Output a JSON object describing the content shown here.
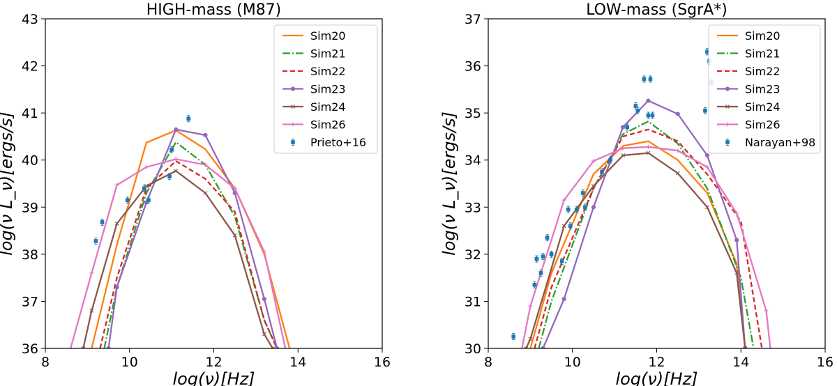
{
  "chart_data": [
    {
      "type": "line",
      "title": "HIGH-mass (M87)",
      "xlabel": "log(ν)[Hz]",
      "ylabel": "log(ν L_ν)[ergs/s]",
      "xlim": [
        8,
        16
      ],
      "ylim": [
        36,
        43
      ],
      "xticks": [
        8,
        10,
        12,
        14,
        16
      ],
      "yticks": [
        36,
        37,
        38,
        39,
        40,
        41,
        42,
        43
      ],
      "legend_position": "top-right",
      "series": [
        {
          "name": "Sim20",
          "color": "#ff7f0e",
          "style": "solid",
          "marker": "none",
          "x": [
            9.1,
            9.7,
            10.4,
            11.1,
            11.8,
            12.5,
            13.2,
            13.8
          ],
          "y": [
            36.0,
            38.2,
            40.37,
            40.63,
            40.23,
            39.4,
            38.0,
            36.0
          ]
        },
        {
          "name": "Sim21",
          "color": "#2ca02c",
          "style": "dashdot",
          "marker": "none",
          "x": [
            9.4,
            9.7,
            10.4,
            11.1,
            11.8,
            12.5,
            13.2,
            13.5
          ],
          "y": [
            36.0,
            37.3,
            39.3,
            40.38,
            39.9,
            38.8,
            36.6,
            36.0
          ]
        },
        {
          "name": "Sim22",
          "color": "#d62728",
          "style": "dashed",
          "marker": "none",
          "x": [
            9.3,
            9.7,
            10.4,
            11.1,
            11.8,
            12.5,
            13.2,
            13.5
          ],
          "y": [
            36.0,
            37.5,
            39.4,
            39.98,
            39.6,
            38.9,
            36.6,
            36.0
          ]
        },
        {
          "name": "Sim23",
          "color": "#9467bd",
          "style": "solid",
          "marker": "circle",
          "x": [
            9.5,
            9.7,
            10.4,
            11.1,
            11.8,
            12.5,
            13.2,
            13.5
          ],
          "y": [
            36.0,
            37.3,
            39.1,
            40.65,
            40.53,
            39.3,
            37.05,
            36.0
          ]
        },
        {
          "name": "Sim24",
          "color": "#8c564b",
          "style": "solid",
          "marker": "x",
          "x": [
            8.9,
            9.1,
            9.7,
            10.4,
            11.1,
            11.8,
            12.5,
            13.2,
            13.4
          ],
          "y": [
            36.0,
            36.8,
            38.65,
            39.45,
            39.77,
            39.3,
            38.4,
            36.3,
            36.0
          ]
        },
        {
          "name": "Sim26",
          "color": "#e377c2",
          "style": "solid",
          "marker": "plus",
          "x": [
            8.6,
            9.1,
            9.7,
            10.4,
            11.1,
            11.8,
            12.5,
            13.2,
            13.7
          ],
          "y": [
            36.0,
            37.6,
            39.47,
            39.85,
            40.02,
            39.9,
            39.4,
            38.05,
            36.0
          ]
        },
        {
          "name": "Prieto+16",
          "color": "#1f77b4",
          "style": "none",
          "marker": "square-errorbar",
          "x": [
            9.2,
            9.35,
            9.95,
            10.35,
            10.45,
            10.95,
            11.0,
            11.4
          ],
          "y": [
            38.28,
            38.68,
            39.15,
            39.4,
            39.15,
            39.65,
            40.22,
            40.88
          ]
        }
      ]
    },
    {
      "type": "line",
      "title": "LOW-mass (SgrA*)",
      "xlabel": "log(ν)[Hz]",
      "ylabel": "log(ν L_ν)[ergs/s]",
      "xlim": [
        8,
        16
      ],
      "ylim": [
        30,
        37
      ],
      "xticks": [
        8,
        10,
        12,
        14,
        16
      ],
      "yticks": [
        30,
        31,
        32,
        33,
        34,
        35,
        36,
        37
      ],
      "legend_position": "top-right",
      "series": [
        {
          "name": "Sim20",
          "color": "#ff7f0e",
          "style": "solid",
          "marker": "none",
          "x": [
            9.0,
            9.5,
            10.5,
            11.2,
            11.8,
            12.5,
            13.2,
            13.9,
            14.1
          ],
          "y": [
            30.0,
            31.6,
            33.7,
            34.3,
            34.4,
            34.0,
            33.3,
            31.8,
            30.0
          ]
        },
        {
          "name": "Sim21",
          "color": "#2ca02c",
          "style": "dashdot",
          "marker": "none",
          "x": [
            9.2,
            9.5,
            10.5,
            11.2,
            11.8,
            12.5,
            13.2,
            14.0,
            14.3
          ],
          "y": [
            30.0,
            31.0,
            33.4,
            34.55,
            34.82,
            34.35,
            33.4,
            31.5,
            30.0
          ]
        },
        {
          "name": "Sim22",
          "color": "#d62728",
          "style": "dashed",
          "marker": "none",
          "x": [
            9.1,
            9.5,
            10.5,
            11.2,
            11.8,
            12.5,
            13.2,
            14.0,
            14.5
          ],
          "y": [
            30.0,
            31.3,
            33.4,
            34.5,
            34.65,
            34.4,
            33.7,
            32.7,
            30.0
          ]
        },
        {
          "name": "Sim23",
          "color": "#9467bd",
          "style": "solid",
          "marker": "circle",
          "x": [
            9.3,
            9.8,
            10.5,
            11.2,
            11.8,
            12.5,
            13.2,
            13.9,
            14.1
          ],
          "y": [
            30.0,
            31.05,
            33.0,
            34.7,
            35.26,
            34.98,
            34.1,
            32.3,
            30.0
          ]
        },
        {
          "name": "Sim24",
          "color": "#8c564b",
          "style": "solid",
          "marker": "x",
          "x": [
            8.9,
            9.0,
            9.8,
            10.5,
            11.2,
            11.8,
            12.5,
            13.2,
            13.9,
            14.1
          ],
          "y": [
            30.0,
            30.2,
            32.6,
            33.45,
            34.1,
            34.15,
            33.72,
            33.0,
            31.6,
            30.0
          ]
        },
        {
          "name": "Sim26",
          "color": "#e377c2",
          "style": "solid",
          "marker": "plus",
          "x": [
            8.8,
            9.0,
            9.8,
            10.5,
            11.2,
            11.8,
            12.5,
            13.2,
            13.9,
            14.6,
            14.7
          ],
          "y": [
            30.0,
            30.9,
            33.15,
            33.98,
            34.25,
            34.28,
            34.2,
            33.85,
            32.87,
            30.8,
            30.0
          ]
        },
        {
          "name": "Narayan+98",
          "color": "#1f77b4",
          "style": "none",
          "marker": "square-errorbar",
          "x": [
            8.6,
            9.1,
            9.15,
            9.25,
            9.3,
            9.4,
            9.5,
            9.75,
            9.9,
            9.95,
            10.1,
            10.25,
            10.3,
            10.7,
            10.9,
            11.3,
            11.5,
            11.55,
            11.7,
            11.8,
            11.85,
            11.9,
            13.15,
            13.2,
            13.25,
            13.3
          ],
          "y": [
            30.25,
            31.35,
            31.9,
            31.6,
            31.95,
            32.35,
            32.0,
            31.85,
            32.95,
            32.6,
            32.95,
            33.3,
            33.0,
            33.75,
            34.0,
            34.7,
            35.15,
            35.05,
            35.72,
            34.95,
            35.72,
            34.95,
            35.05,
            36.3,
            36.1,
            35.65
          ]
        }
      ]
    }
  ]
}
